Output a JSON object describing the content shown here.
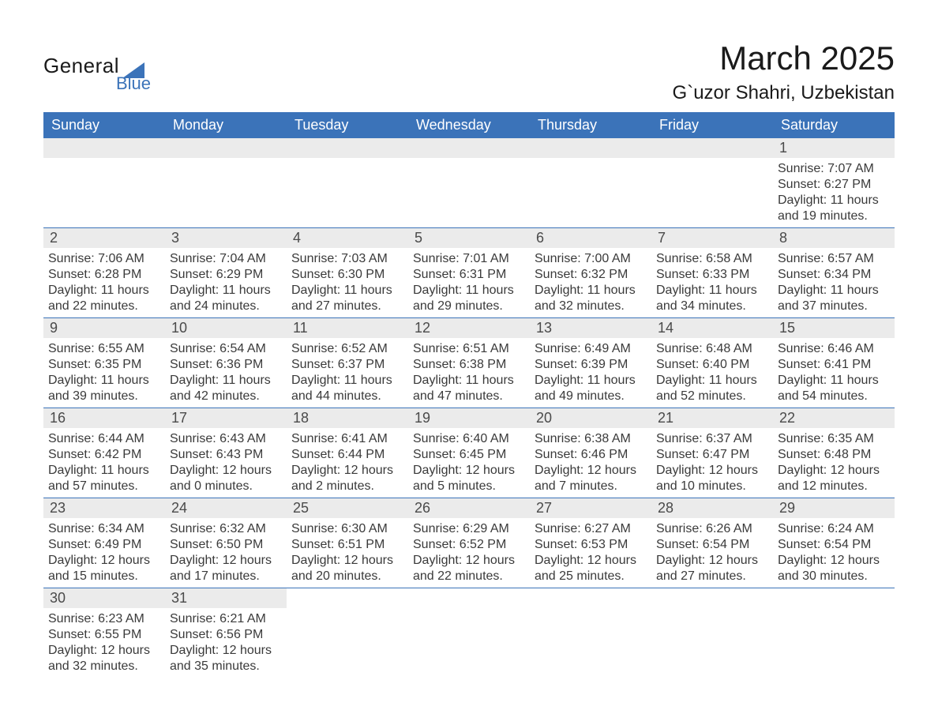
{
  "logo": {
    "text_main": "General",
    "text_sub": "Blue",
    "main_color": "#1a1a1a",
    "sub_color": "#3b73b9",
    "triangle_fill": "#3b73b9"
  },
  "header": {
    "month_title": "March 2025",
    "location": "G`uzor Shahri, Uzbekistan"
  },
  "colors": {
    "header_bg": "#3b73b9",
    "header_text": "#ffffff",
    "daynum_bg": "#ebebeb",
    "daynum_text": "#4a4a4a",
    "body_text": "#3a3a3a",
    "cell_border": "#3b73b9",
    "page_bg": "#ffffff"
  },
  "weekdays": [
    "Sunday",
    "Monday",
    "Tuesday",
    "Wednesday",
    "Thursday",
    "Friday",
    "Saturday"
  ],
  "weeks": [
    [
      null,
      null,
      null,
      null,
      null,
      null,
      {
        "n": "1",
        "sr": "Sunrise: 7:07 AM",
        "ss": "Sunset: 6:27 PM",
        "dl": "Daylight: 11 hours and 19 minutes."
      }
    ],
    [
      {
        "n": "2",
        "sr": "Sunrise: 7:06 AM",
        "ss": "Sunset: 6:28 PM",
        "dl": "Daylight: 11 hours and 22 minutes."
      },
      {
        "n": "3",
        "sr": "Sunrise: 7:04 AM",
        "ss": "Sunset: 6:29 PM",
        "dl": "Daylight: 11 hours and 24 minutes."
      },
      {
        "n": "4",
        "sr": "Sunrise: 7:03 AM",
        "ss": "Sunset: 6:30 PM",
        "dl": "Daylight: 11 hours and 27 minutes."
      },
      {
        "n": "5",
        "sr": "Sunrise: 7:01 AM",
        "ss": "Sunset: 6:31 PM",
        "dl": "Daylight: 11 hours and 29 minutes."
      },
      {
        "n": "6",
        "sr": "Sunrise: 7:00 AM",
        "ss": "Sunset: 6:32 PM",
        "dl": "Daylight: 11 hours and 32 minutes."
      },
      {
        "n": "7",
        "sr": "Sunrise: 6:58 AM",
        "ss": "Sunset: 6:33 PM",
        "dl": "Daylight: 11 hours and 34 minutes."
      },
      {
        "n": "8",
        "sr": "Sunrise: 6:57 AM",
        "ss": "Sunset: 6:34 PM",
        "dl": "Daylight: 11 hours and 37 minutes."
      }
    ],
    [
      {
        "n": "9",
        "sr": "Sunrise: 6:55 AM",
        "ss": "Sunset: 6:35 PM",
        "dl": "Daylight: 11 hours and 39 minutes."
      },
      {
        "n": "10",
        "sr": "Sunrise: 6:54 AM",
        "ss": "Sunset: 6:36 PM",
        "dl": "Daylight: 11 hours and 42 minutes."
      },
      {
        "n": "11",
        "sr": "Sunrise: 6:52 AM",
        "ss": "Sunset: 6:37 PM",
        "dl": "Daylight: 11 hours and 44 minutes."
      },
      {
        "n": "12",
        "sr": "Sunrise: 6:51 AM",
        "ss": "Sunset: 6:38 PM",
        "dl": "Daylight: 11 hours and 47 minutes."
      },
      {
        "n": "13",
        "sr": "Sunrise: 6:49 AM",
        "ss": "Sunset: 6:39 PM",
        "dl": "Daylight: 11 hours and 49 minutes."
      },
      {
        "n": "14",
        "sr": "Sunrise: 6:48 AM",
        "ss": "Sunset: 6:40 PM",
        "dl": "Daylight: 11 hours and 52 minutes."
      },
      {
        "n": "15",
        "sr": "Sunrise: 6:46 AM",
        "ss": "Sunset: 6:41 PM",
        "dl": "Daylight: 11 hours and 54 minutes."
      }
    ],
    [
      {
        "n": "16",
        "sr": "Sunrise: 6:44 AM",
        "ss": "Sunset: 6:42 PM",
        "dl": "Daylight: 11 hours and 57 minutes."
      },
      {
        "n": "17",
        "sr": "Sunrise: 6:43 AM",
        "ss": "Sunset: 6:43 PM",
        "dl": "Daylight: 12 hours and 0 minutes."
      },
      {
        "n": "18",
        "sr": "Sunrise: 6:41 AM",
        "ss": "Sunset: 6:44 PM",
        "dl": "Daylight: 12 hours and 2 minutes."
      },
      {
        "n": "19",
        "sr": "Sunrise: 6:40 AM",
        "ss": "Sunset: 6:45 PM",
        "dl": "Daylight: 12 hours and 5 minutes."
      },
      {
        "n": "20",
        "sr": "Sunrise: 6:38 AM",
        "ss": "Sunset: 6:46 PM",
        "dl": "Daylight: 12 hours and 7 minutes."
      },
      {
        "n": "21",
        "sr": "Sunrise: 6:37 AM",
        "ss": "Sunset: 6:47 PM",
        "dl": "Daylight: 12 hours and 10 minutes."
      },
      {
        "n": "22",
        "sr": "Sunrise: 6:35 AM",
        "ss": "Sunset: 6:48 PM",
        "dl": "Daylight: 12 hours and 12 minutes."
      }
    ],
    [
      {
        "n": "23",
        "sr": "Sunrise: 6:34 AM",
        "ss": "Sunset: 6:49 PM",
        "dl": "Daylight: 12 hours and 15 minutes."
      },
      {
        "n": "24",
        "sr": "Sunrise: 6:32 AM",
        "ss": "Sunset: 6:50 PM",
        "dl": "Daylight: 12 hours and 17 minutes."
      },
      {
        "n": "25",
        "sr": "Sunrise: 6:30 AM",
        "ss": "Sunset: 6:51 PM",
        "dl": "Daylight: 12 hours and 20 minutes."
      },
      {
        "n": "26",
        "sr": "Sunrise: 6:29 AM",
        "ss": "Sunset: 6:52 PM",
        "dl": "Daylight: 12 hours and 22 minutes."
      },
      {
        "n": "27",
        "sr": "Sunrise: 6:27 AM",
        "ss": "Sunset: 6:53 PM",
        "dl": "Daylight: 12 hours and 25 minutes."
      },
      {
        "n": "28",
        "sr": "Sunrise: 6:26 AM",
        "ss": "Sunset: 6:54 PM",
        "dl": "Daylight: 12 hours and 27 minutes."
      },
      {
        "n": "29",
        "sr": "Sunrise: 6:24 AM",
        "ss": "Sunset: 6:54 PM",
        "dl": "Daylight: 12 hours and 30 minutes."
      }
    ],
    [
      {
        "n": "30",
        "sr": "Sunrise: 6:23 AM",
        "ss": "Sunset: 6:55 PM",
        "dl": "Daylight: 12 hours and 32 minutes."
      },
      {
        "n": "31",
        "sr": "Sunrise: 6:21 AM",
        "ss": "Sunset: 6:56 PM",
        "dl": "Daylight: 12 hours and 35 minutes."
      },
      null,
      null,
      null,
      null,
      null
    ]
  ]
}
